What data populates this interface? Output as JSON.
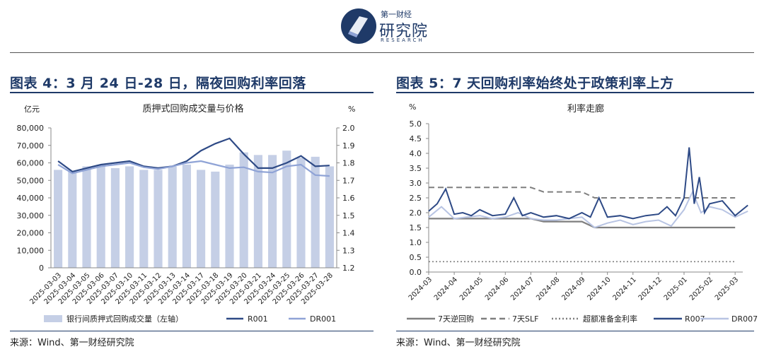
{
  "header": {
    "logo_line1": "第一财经",
    "logo_line2": "研究院",
    "logo_line3": "RESEARCH"
  },
  "accent": "#1f3a68",
  "left": {
    "title": "图表 4：3 月 24 日-28 日，隔夜回购利率回落",
    "source": "来源：Wind、第一财经研究院",
    "chart_data": {
      "type": "bar",
      "title": "质押式回购成交量与价格",
      "ylabel_left": "亿元",
      "ylabel_right": "%",
      "ylim_left": [
        0,
        80000
      ],
      "ylim_right": [
        1.2,
        2.0
      ],
      "yticks_left": [
        "0",
        "10,000",
        "20,000",
        "30,000",
        "40,000",
        "50,000",
        "60,000",
        "70,000",
        "80,000"
      ],
      "yticks_right": [
        "1.2",
        "1.3",
        "1.4",
        "1.5",
        "1.6",
        "1.7",
        "1.8",
        "1.9",
        "2.0"
      ],
      "categories": [
        "2025-03-03",
        "2025-03-04",
        "2025-03-05",
        "2025-03-06",
        "2025-03-07",
        "2025-03-10",
        "2025-03-11",
        "2025-03-12",
        "2025-03-13",
        "2025-03-14",
        "2025-03-17",
        "2025-03-18",
        "2025-03-19",
        "2025-03-20",
        "2025-03-21",
        "2025-03-24",
        "2025-03-25",
        "2025-03-26",
        "2025-03-27",
        "2025-03-28"
      ],
      "series": [
        {
          "name": "银行间质押式回购成交量（左轴）",
          "kind": "bar",
          "axis": "left",
          "color": "#c5cfe6",
          "values": [
            56000,
            55000,
            58000,
            59000,
            57000,
            58000,
            56000,
            56000,
            58000,
            59000,
            56000,
            55000,
            59000,
            66000,
            64500,
            64500,
            67000,
            63000,
            63500,
            58000
          ]
        },
        {
          "name": "R001",
          "kind": "line",
          "axis": "right",
          "color": "#2e4a86",
          "values": [
            1.81,
            1.75,
            1.77,
            1.79,
            1.8,
            1.81,
            1.78,
            1.77,
            1.78,
            1.81,
            1.87,
            1.91,
            1.94,
            1.85,
            1.77,
            1.77,
            1.8,
            1.84,
            1.78,
            1.785
          ]
        },
        {
          "name": "DR001",
          "kind": "line",
          "axis": "right",
          "color": "#8fa3d6",
          "values": [
            1.79,
            1.74,
            1.76,
            1.78,
            1.79,
            1.8,
            1.775,
            1.765,
            1.78,
            1.8,
            1.81,
            1.79,
            1.77,
            1.775,
            1.75,
            1.745,
            1.78,
            1.79,
            1.73,
            1.725
          ]
        }
      ],
      "legend": "bottom"
    }
  },
  "right": {
    "title": "图表 5：7 天回购利率始终处于政策利率上方",
    "source": "来源：Wind、第一财经研究院",
    "chart_data": {
      "type": "line",
      "title": "利率走廊",
      "ylabel": "%",
      "ylim": [
        0,
        5.0
      ],
      "yticks": [
        "0.0",
        "0.5",
        "1.0",
        "1.5",
        "2.0",
        "2.5",
        "3.0",
        "3.5",
        "4.0",
        "4.5",
        "5.0"
      ],
      "x_ticks": [
        "2024-03",
        "2024-04",
        "2024-05",
        "2024-06",
        "2024-07",
        "2024-08",
        "2024-09",
        "2024-10",
        "2024-11",
        "2024-12",
        "2025-01",
        "2025-02",
        "2025-03"
      ],
      "x_range": [
        "2024-03",
        "2025-03"
      ],
      "series": [
        {
          "name": "7天逆回购",
          "style": "solid",
          "color": "#7f7f7f",
          "x": [
            "2024-03",
            "2024-07",
            "2024-07",
            "2024-09",
            "2024-09",
            "2025-03"
          ],
          "y": [
            1.8,
            1.8,
            1.7,
            1.7,
            1.5,
            1.5
          ]
        },
        {
          "name": "7天SLF",
          "style": "dashed",
          "color": "#7f7f7f",
          "x": [
            "2024-03",
            "2024-07",
            "2024-07",
            "2024-09",
            "2024-09",
            "2025-03"
          ],
          "y": [
            2.85,
            2.85,
            2.7,
            2.7,
            2.5,
            2.5
          ]
        },
        {
          "name": "超额准备金利率",
          "style": "dotted",
          "color": "#7f7f7f",
          "x": [
            "2024-03",
            "2025-03"
          ],
          "y": [
            0.35,
            0.35
          ]
        },
        {
          "name": "R007",
          "style": "solid",
          "color": "#2e4a86",
          "x": [
            "2024-03",
            "2024-03",
            "2024-03",
            "2024-04",
            "2024-04",
            "2024-04",
            "2024-05",
            "2024-05",
            "2024-06",
            "2024-06",
            "2024-06",
            "2024-07",
            "2024-07",
            "2024-08",
            "2024-08",
            "2024-09",
            "2024-09",
            "2024-09",
            "2024-10",
            "2024-10",
            "2024-11",
            "2024-11",
            "2024-12",
            "2024-12",
            "2024-12",
            "2025-01",
            "2025-01",
            "2025-01",
            "2025-01",
            "2025-01",
            "2025-02",
            "2025-02",
            "2025-03",
            "2025-03"
          ],
          "y": [
            2.05,
            2.3,
            2.8,
            1.95,
            2.0,
            1.9,
            2.1,
            1.9,
            1.95,
            2.5,
            1.9,
            2.0,
            1.85,
            1.9,
            1.8,
            2.0,
            1.85,
            2.5,
            1.85,
            1.9,
            1.8,
            1.9,
            1.95,
            2.2,
            1.9,
            2.5,
            4.2,
            2.3,
            3.2,
            2.0,
            2.3,
            2.4,
            1.9,
            2.25
          ]
        },
        {
          "name": "DR007",
          "style": "solid",
          "color": "#b8c4e3",
          "x": [
            "2024-03",
            "2024-03",
            "2024-04",
            "2024-04",
            "2024-05",
            "2024-05",
            "2024-06",
            "2024-06",
            "2024-07",
            "2024-07",
            "2024-08",
            "2024-08",
            "2024-09",
            "2024-09",
            "2024-10",
            "2024-10",
            "2024-11",
            "2024-11",
            "2024-12",
            "2024-12",
            "2025-01",
            "2025-01",
            "2025-01",
            "2025-02",
            "2025-02",
            "2025-03",
            "2025-03"
          ],
          "y": [
            1.85,
            2.2,
            1.8,
            1.85,
            1.9,
            1.8,
            1.85,
            2.0,
            1.8,
            1.75,
            1.75,
            1.8,
            1.85,
            1.5,
            1.65,
            1.75,
            1.6,
            1.7,
            1.75,
            1.55,
            2.1,
            2.7,
            2.0,
            2.2,
            2.1,
            1.85,
            2.05
          ]
        }
      ],
      "legend": "bottom"
    }
  }
}
